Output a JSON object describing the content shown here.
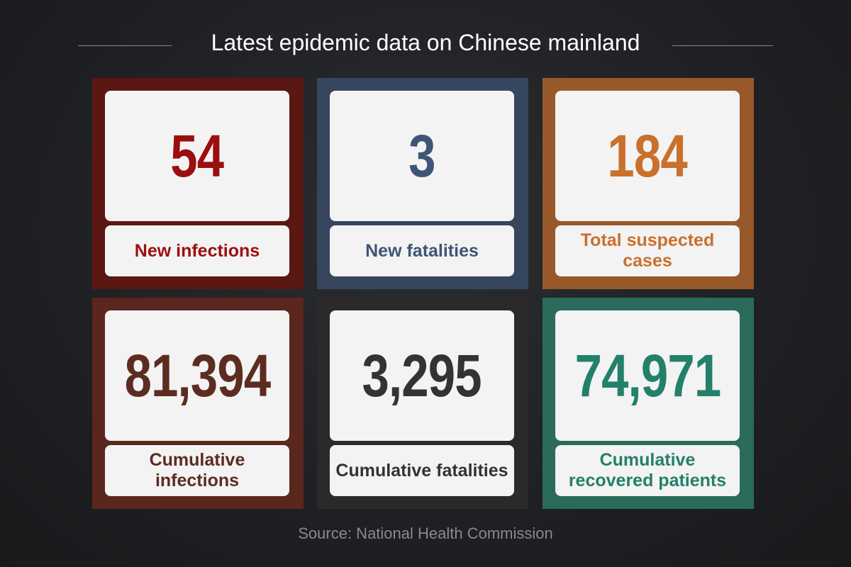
{
  "header": {
    "title": "Latest epidemic data on Chinese mainland"
  },
  "cards": [
    {
      "value": "54",
      "label": "New infections"
    },
    {
      "value": "3",
      "label": "New fatalities"
    },
    {
      "value": "184",
      "label": "Total suspected cases"
    },
    {
      "value": "81,394",
      "label": "Cumulative infections"
    },
    {
      "value": "3,295",
      "label": "Cumulative fatalities"
    },
    {
      "value": "74,971",
      "label": "Cumulative recovered patients"
    }
  ],
  "footer": {
    "source": "Source: National Health Commission"
  }
}
